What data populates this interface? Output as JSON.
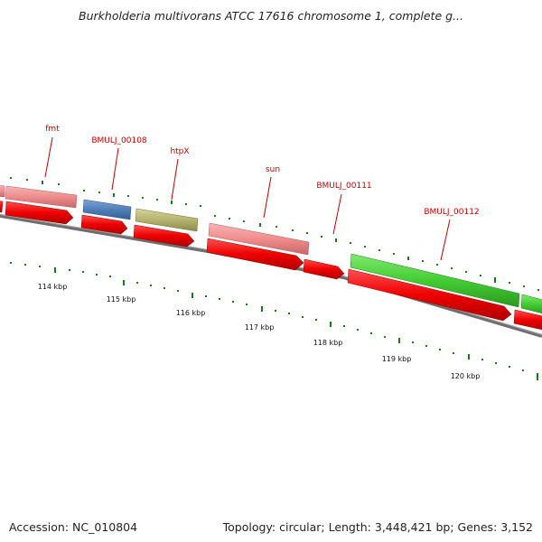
{
  "title": "Burkholderia multivorans ATCC 17616 chromosome 1, complete g...",
  "footer": {
    "accession": "Accession: NC_010804",
    "stats": "Topology: circular; Length: 3,448,421 bp; Genes: 3,152"
  },
  "colors": {
    "backbone": "#808080",
    "tick": "#1a7a1a",
    "gene_label": "#c00000",
    "cds_arrow": "#ee0000",
    "pink_feature": "#ef8c8c",
    "blue_feature": "#4f7fb8",
    "olive_feature": "#b5b36e",
    "green_feature": "#44cc33"
  },
  "kbp_labels": [
    "114 kbp",
    "115 kbp",
    "116 kbp",
    "117 kbp",
    "118 kbp",
    "119 kbp",
    "120 kbp"
  ],
  "genes": [
    {
      "label": "fmt",
      "color": "pink"
    },
    {
      "label": "BMULJ_00108",
      "color": "blue"
    },
    {
      "label": "htpX",
      "color": "olive"
    },
    {
      "label": "sun",
      "color": "pink"
    },
    {
      "label": "BMULJ_00111",
      "color": "none"
    },
    {
      "label": "BMULJ_00112",
      "color": "green"
    }
  ]
}
